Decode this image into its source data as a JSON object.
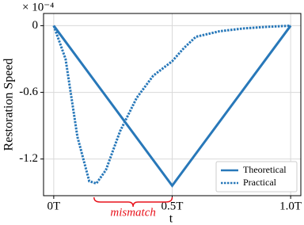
{
  "chart_data": {
    "type": "line",
    "multiplier": "× 10⁻⁴",
    "xlabel": "t",
    "ylabel": "Restoration Speed",
    "annotation": "mismatch",
    "annotation_color": "#e8121b",
    "xlim": [
      -0.043,
      1.043
    ],
    "ylim": [
      -1.53,
      0.11
    ],
    "xticks": [
      {
        "value": 0,
        "label": "0T"
      },
      {
        "value": 0.5,
        "label": "0.5T"
      },
      {
        "value": 1,
        "label": "1.0T"
      }
    ],
    "yticks": [
      0,
      -0.6,
      -1.2
    ],
    "grid": true,
    "legend": "lower right",
    "series": [
      {
        "name": "Theoretical",
        "color": "#2878b9",
        "style": "solid",
        "x": [
          0,
          0.5,
          1
        ],
        "values": [
          0,
          -1.44,
          0
        ]
      },
      {
        "name": "Practical",
        "color": "#2878b9",
        "style": "dotted",
        "x": [
          0,
          0.05,
          0.1,
          0.15,
          0.18,
          0.22,
          0.28,
          0.35,
          0.42,
          0.5,
          0.55,
          0.6,
          0.7,
          0.8,
          0.9,
          1
        ],
        "values": [
          0,
          -0.3,
          -1.0,
          -1.4,
          -1.42,
          -1.3,
          -0.95,
          -0.65,
          -0.45,
          -0.32,
          -0.2,
          -0.1,
          -0.05,
          -0.025,
          -0.01,
          0
        ]
      }
    ]
  }
}
